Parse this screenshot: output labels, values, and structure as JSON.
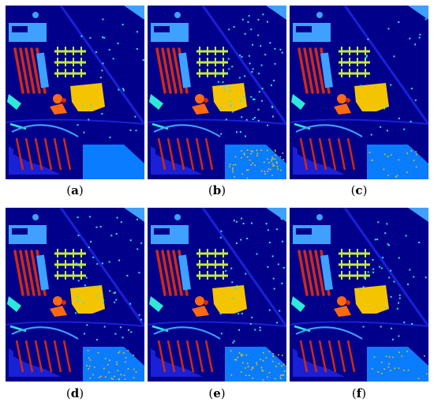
{
  "figure": {
    "panels": [
      {
        "id": "a",
        "caption_open": "(",
        "caption_letter": "a",
        "caption_close": ")"
      },
      {
        "id": "b",
        "caption_open": "(",
        "caption_letter": "b",
        "caption_close": ")"
      },
      {
        "id": "c",
        "caption_open": "(",
        "caption_letter": "c",
        "caption_close": ")"
      },
      {
        "id": "d",
        "caption_open": "(",
        "caption_letter": "d",
        "caption_close": ")"
      },
      {
        "id": "e",
        "caption_open": "(",
        "caption_letter": "e",
        "caption_close": ")"
      },
      {
        "id": "f",
        "caption_open": "(",
        "caption_letter": "f",
        "caption_close": ")"
      }
    ]
  },
  "colors": {
    "background": "#00008b",
    "road": "#1a20d6",
    "trees": "#3fa0ff",
    "meadows": "#0a7cff",
    "metal": "#2ee8d8",
    "soil": "#d42a0c",
    "bitumen": "#ff6a10",
    "bricks": "#f5c400",
    "shadows": "#c6e84a"
  }
}
